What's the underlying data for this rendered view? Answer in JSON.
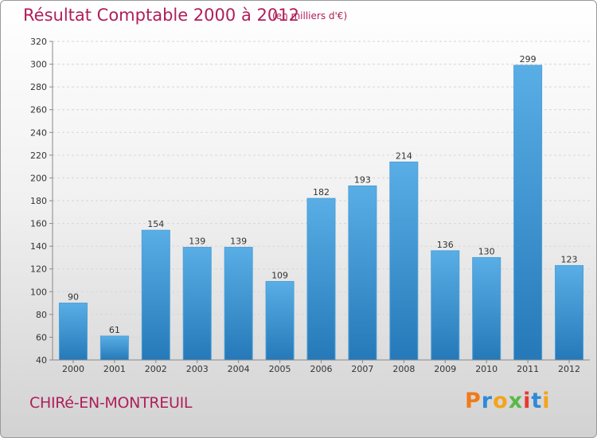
{
  "header": {
    "title": "Résultat Comptable 2000 à 2012",
    "subtitle": "(en milliers d'€)"
  },
  "footer": {
    "commune": "CHIRé-EN-MONTREUIL",
    "brand": "Proxiti"
  },
  "colors": {
    "title": "#b01e5a",
    "bar_light": "#5aaee6",
    "bar_dark": "#2579b8",
    "brand_letters": [
      "#f07a1b",
      "#2e8ad8",
      "#f5a31b",
      "#59b947",
      "#e8382f",
      "#2e8ad8",
      "#f5a31b"
    ]
  },
  "chart_data": {
    "type": "bar",
    "title": "Résultat Comptable 2000 à 2012",
    "subtitle": "(en milliers d'€)",
    "categories": [
      "2000",
      "2001",
      "2002",
      "2003",
      "2004",
      "2005",
      "2006",
      "2007",
      "2008",
      "2009",
      "2010",
      "2011",
      "2012"
    ],
    "values": [
      90,
      61,
      154,
      139,
      139,
      109,
      182,
      193,
      214,
      136,
      130,
      299,
      123
    ],
    "ylim": [
      40,
      320
    ],
    "yticks": [
      40,
      60,
      80,
      100,
      120,
      140,
      160,
      180,
      200,
      220,
      240,
      260,
      280,
      300,
      320
    ],
    "grid": true
  }
}
